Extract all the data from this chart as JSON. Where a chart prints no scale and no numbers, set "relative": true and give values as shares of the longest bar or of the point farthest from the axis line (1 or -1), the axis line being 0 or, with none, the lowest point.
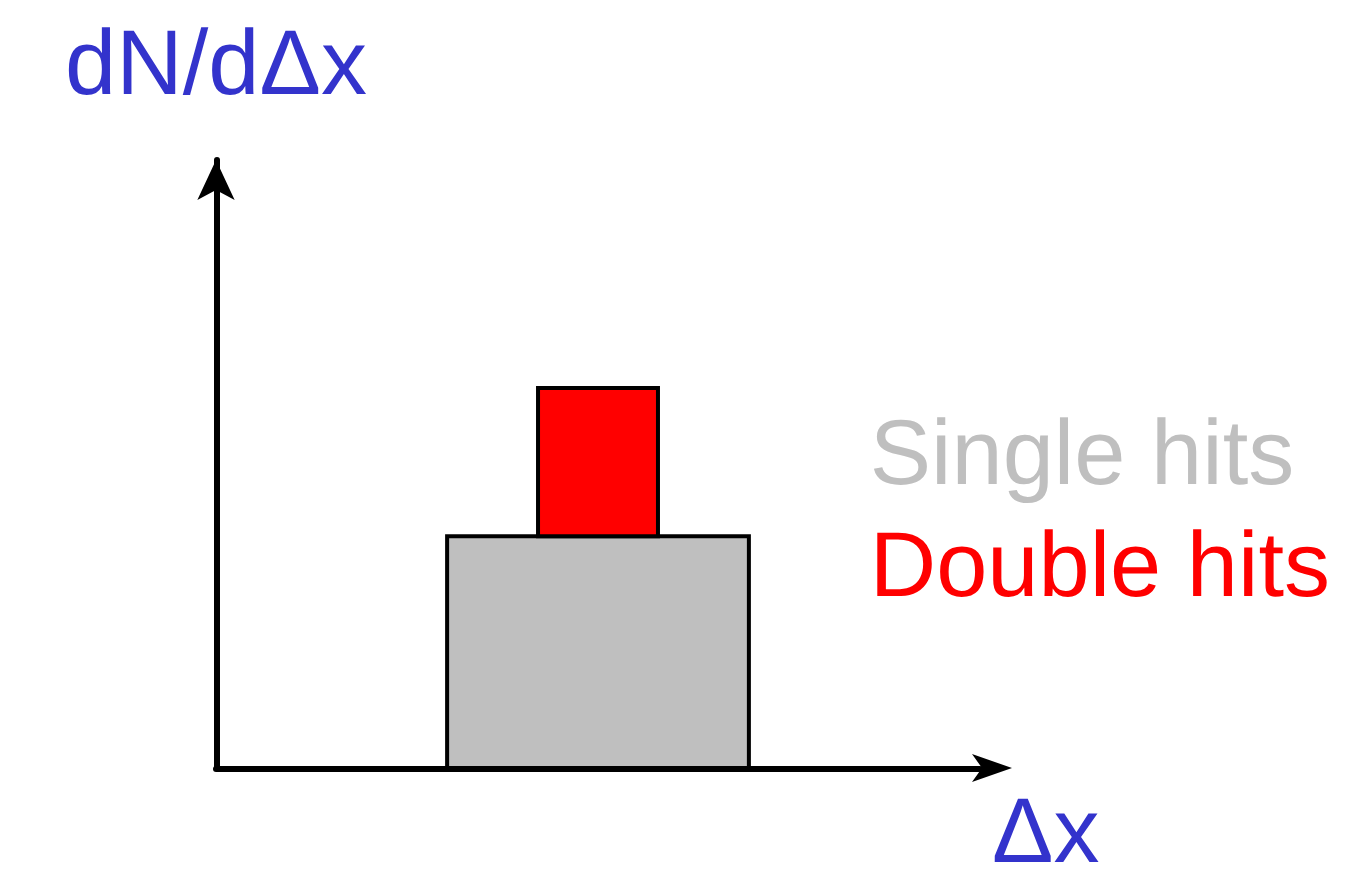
{
  "chart_data": {
    "type": "bar",
    "relative": true,
    "stacked": true,
    "ylabel": "dN/dΔx",
    "xlabel": "Δx",
    "categories": [
      null
    ],
    "series": [
      {
        "name": "Single hits",
        "color": "#bfbfbf",
        "values": [
          0.61
        ]
      },
      {
        "name": "Double hits",
        "color": "#ff0000",
        "values": [
          0.39
        ]
      }
    ],
    "legend": "right",
    "grid": false,
    "tick_labels": false
  }
}
